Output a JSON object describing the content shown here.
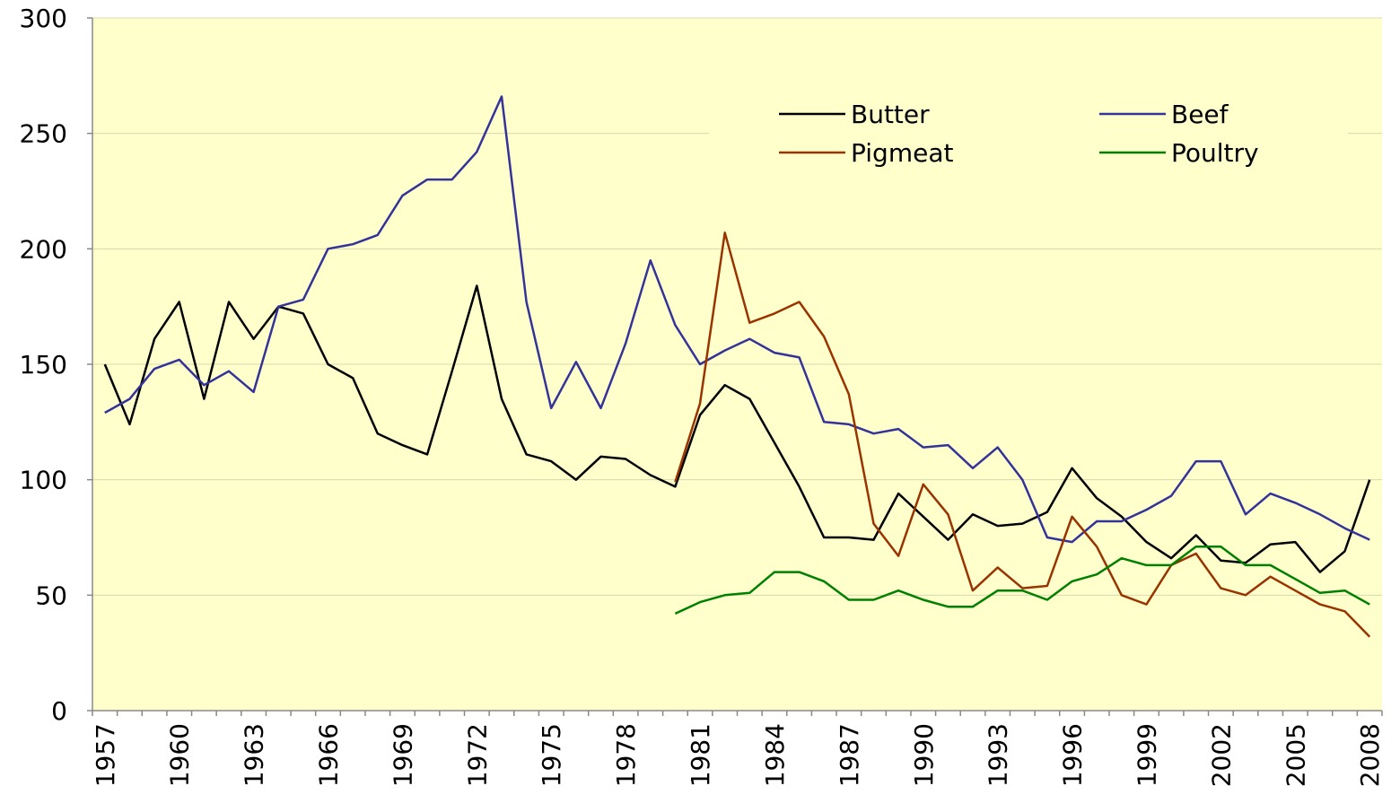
{
  "chart_data": {
    "type": "line",
    "categories": [
      "1957",
      null,
      null,
      "1960",
      null,
      null,
      "1963",
      null,
      null,
      "1966",
      null,
      null,
      "1969",
      null,
      null,
      "1972",
      null,
      null,
      "1975",
      null,
      null,
      "1978",
      null,
      null,
      "1981",
      null,
      null,
      "1984",
      null,
      null,
      "1987",
      null,
      null,
      "1990",
      null,
      null,
      "1993",
      null,
      null,
      "1996",
      null,
      null,
      "1999",
      null,
      null,
      "2002",
      null,
      null,
      "2005",
      null,
      null,
      "2008"
    ],
    "series": [
      {
        "name": "Butter",
        "color": "#000000",
        "values": [
          150,
          124,
          161,
          177,
          135,
          177,
          161,
          175,
          172,
          150,
          144,
          120,
          115,
          111,
          147,
          184,
          135,
          111,
          108,
          100,
          110,
          109,
          102,
          97,
          128,
          141,
          135,
          116,
          97,
          75,
          75,
          74,
          94,
          84,
          74,
          85,
          80,
          81,
          86,
          105,
          92,
          84,
          73,
          66,
          76,
          65,
          64,
          72,
          73,
          60,
          69,
          100
        ]
      },
      {
        "name": "Beef",
        "color": "#333399",
        "values": [
          129,
          135,
          148,
          152,
          141,
          147,
          138,
          175,
          178,
          200,
          202,
          206,
          223,
          230,
          230,
          242,
          266,
          177,
          131,
          151,
          131,
          159,
          195,
          167,
          150,
          156,
          161,
          155,
          153,
          125,
          124,
          120,
          122,
          114,
          115,
          105,
          114,
          100,
          75,
          73,
          82,
          82,
          87,
          93,
          108,
          108,
          85,
          94,
          90,
          85,
          79,
          74
        ]
      },
      {
        "name": "Pigmeat",
        "color": "#993300",
        "values": [
          null,
          null,
          null,
          null,
          null,
          null,
          null,
          null,
          null,
          null,
          null,
          null,
          null,
          null,
          null,
          null,
          null,
          null,
          null,
          null,
          null,
          null,
          null,
          99,
          133,
          207,
          168,
          172,
          177,
          162,
          137,
          81,
          67,
          98,
          85,
          52,
          62,
          53,
          54,
          84,
          71,
          50,
          46,
          63,
          68,
          53,
          50,
          58,
          52,
          46,
          43,
          32
        ]
      },
      {
        "name": "Poultry",
        "color": "#008000",
        "values": [
          null,
          null,
          null,
          null,
          null,
          null,
          null,
          null,
          null,
          null,
          null,
          null,
          null,
          null,
          null,
          null,
          null,
          null,
          null,
          null,
          null,
          null,
          null,
          42,
          47,
          50,
          51,
          60,
          60,
          56,
          48,
          48,
          52,
          48,
          45,
          45,
          52,
          52,
          48,
          56,
          59,
          66,
          63,
          63,
          71,
          71,
          63,
          63,
          57,
          51,
          52,
          46
        ]
      }
    ],
    "ylim": [
      0,
      300
    ],
    "yticks": [
      0,
      50,
      100,
      150,
      200,
      250,
      300
    ],
    "grid": true
  }
}
